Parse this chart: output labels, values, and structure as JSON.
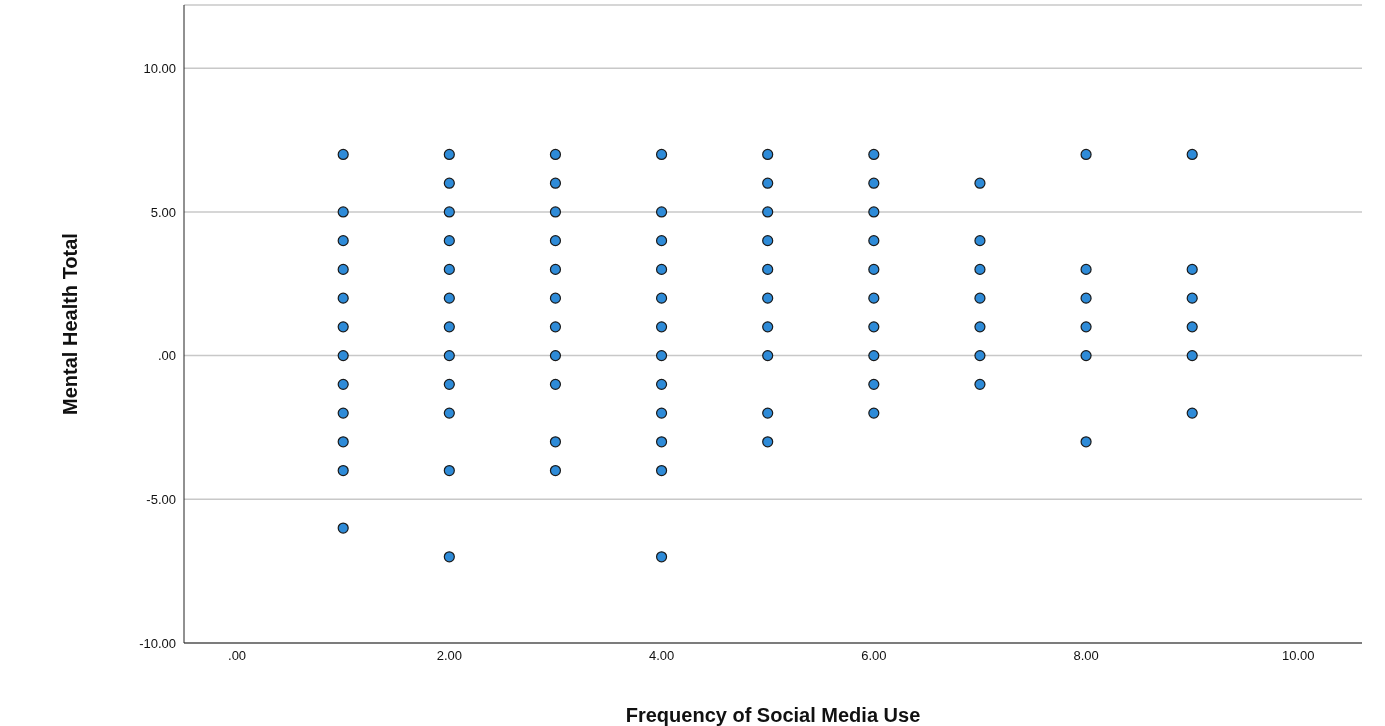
{
  "chart_data": {
    "type": "scatter",
    "xlabel": "Frequency of Social Media Use",
    "ylabel": "Mental Health Total",
    "xlim": [
      -0.5,
      10.6
    ],
    "ylim": [
      -10,
      12.2
    ],
    "xticks": [
      {
        "value": 0,
        "label": ".00"
      },
      {
        "value": 2,
        "label": "2.00"
      },
      {
        "value": 4,
        "label": "4.00"
      },
      {
        "value": 6,
        "label": "6.00"
      },
      {
        "value": 8,
        "label": "8.00"
      },
      {
        "value": 10,
        "label": "10.00"
      }
    ],
    "yticks": [
      {
        "value": -10,
        "label": "-10.00"
      },
      {
        "value": -5,
        "label": "-5.00"
      },
      {
        "value": 0,
        "label": ".00"
      },
      {
        "value": 5,
        "label": "5.00"
      },
      {
        "value": 10,
        "label": "10.00"
      }
    ],
    "grid": "y",
    "marker": "circle",
    "legend": false,
    "series": [
      {
        "color": "#2e8bd8",
        "x": [
          1,
          1,
          1,
          1,
          1,
          1,
          1,
          1,
          1,
          1,
          1,
          1,
          2,
          2,
          2,
          2,
          2,
          2,
          2,
          2,
          2,
          2,
          2,
          2,
          3,
          3,
          3,
          3,
          3,
          3,
          3,
          3,
          3,
          3,
          3,
          4,
          4,
          4,
          4,
          4,
          4,
          4,
          4,
          4,
          4,
          4,
          4,
          5,
          5,
          5,
          5,
          5,
          5,
          5,
          5,
          5,
          5,
          6,
          6,
          6,
          6,
          6,
          6,
          6,
          6,
          6,
          6,
          7,
          7,
          7,
          7,
          7,
          7,
          7,
          8,
          8,
          8,
          8,
          8,
          8,
          9,
          9,
          9,
          9,
          9,
          9
        ],
        "values": [
          7,
          5,
          4,
          3,
          2,
          1,
          0,
          -1,
          -2,
          -3,
          -4,
          -6,
          7,
          6,
          5,
          4,
          3,
          2,
          1,
          0,
          -1,
          -2,
          -4,
          -7,
          7,
          6,
          5,
          4,
          3,
          2,
          1,
          0,
          -1,
          -3,
          -4,
          7,
          5,
          4,
          3,
          2,
          1,
          0,
          -1,
          -2,
          -3,
          -4,
          -7,
          7,
          6,
          5,
          4,
          3,
          2,
          1,
          0,
          -2,
          -3,
          7,
          6,
          5,
          4,
          3,
          2,
          1,
          0,
          -1,
          -2,
          6,
          4,
          3,
          2,
          1,
          0,
          -1,
          7,
          3,
          2,
          1,
          0,
          -3,
          7,
          3,
          2,
          1,
          0,
          -2
        ]
      }
    ]
  }
}
